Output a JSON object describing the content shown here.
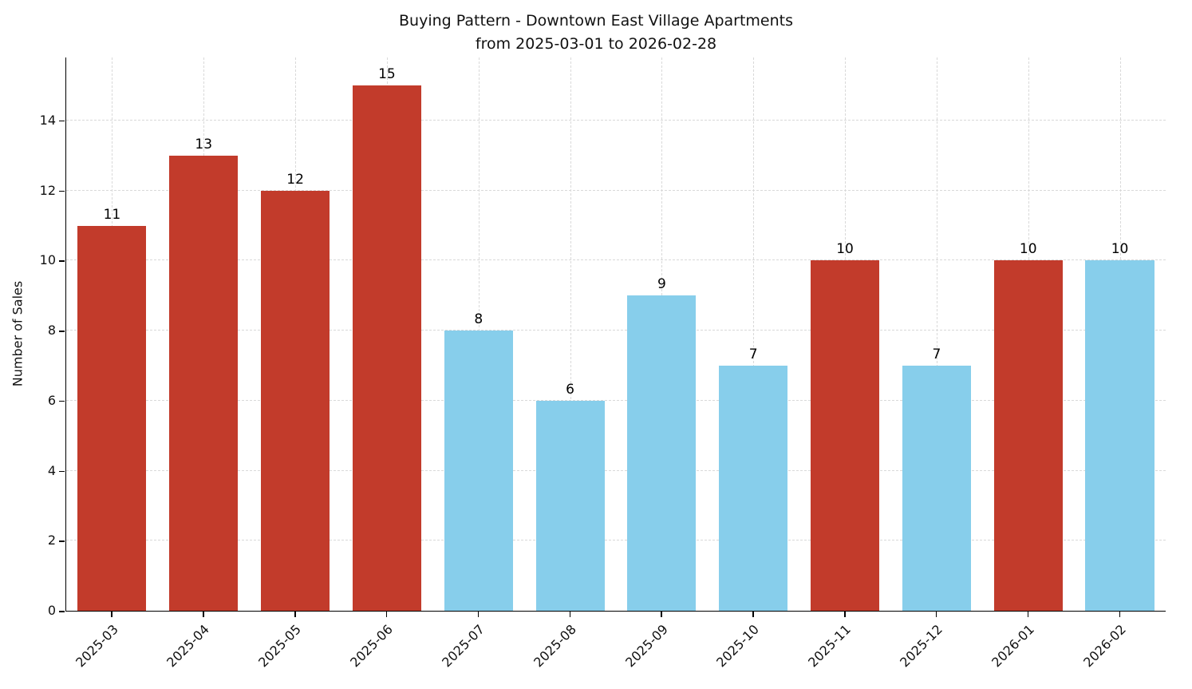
{
  "chart_data": {
    "type": "bar",
    "title": "Buying Pattern - Downtown East Village Apartments",
    "subtitle": "from 2025-03-01 to 2026-02-28",
    "ylabel": "Number of Sales",
    "xlabel": "",
    "categories": [
      "2025-03",
      "2025-04",
      "2025-05",
      "2025-06",
      "2025-07",
      "2025-08",
      "2025-09",
      "2025-10",
      "2025-11",
      "2025-12",
      "2026-01",
      "2026-02"
    ],
    "values": [
      11,
      13,
      12,
      15,
      8,
      6,
      9,
      7,
      10,
      7,
      10,
      10
    ],
    "bar_colors": [
      "#c23b2b",
      "#c23b2b",
      "#c23b2b",
      "#c23b2b",
      "#87ceeb",
      "#87ceeb",
      "#87ceeb",
      "#87ceeb",
      "#c23b2b",
      "#87ceeb",
      "#c23b2b",
      "#87ceeb"
    ],
    "ylim": [
      0,
      15.8
    ],
    "yticks": [
      0,
      2,
      4,
      6,
      8,
      10,
      12,
      14
    ],
    "grid": true,
    "grid_color": "#d9d9d9",
    "legend": "none",
    "bar_value_labels_visible": true
  }
}
